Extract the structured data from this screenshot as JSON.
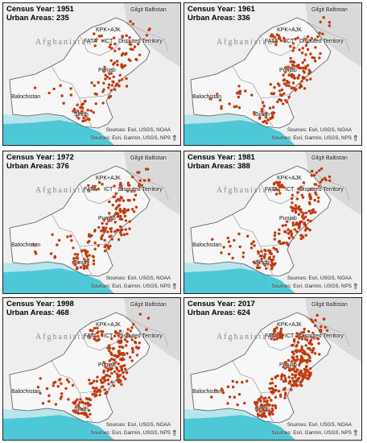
{
  "panels": [
    {
      "year_label": "Census Year: 1951",
      "count_label": "Urban Areas: 235",
      "density": 235
    },
    {
      "year_label": "Census Year: 1961",
      "count_label": "Urban Areas: 336",
      "density": 336
    },
    {
      "year_label": "Census Year: 1972",
      "count_label": "Urban Areas: 376",
      "density": 376
    },
    {
      "year_label": "Census Year: 1981",
      "count_label": "Urban Areas: 388",
      "density": 388
    },
    {
      "year_label": "Census Year: 1998",
      "count_label": "Urban Areas: 468",
      "density": 468
    },
    {
      "year_label": "Census Year: 2017",
      "count_label": "Urban Areas: 624",
      "density": 624
    }
  ],
  "map_labels": {
    "afghanistan": "Afghanistan",
    "gilgit": "Gilgit Baltistan",
    "kpk": "KPK+AJK",
    "fata": "FATA",
    "ict": "ICT",
    "disputed": "Disputed Territory",
    "punjab": "Punjab",
    "balochistan": "Balochistan",
    "sindh": "Sindh"
  },
  "sources": {
    "line1": "Sources: Esri, USGS, NOAA",
    "line2": "Sources: Esri, Garmin, USGS, NPS"
  },
  "colors": {
    "dot": "#c1390e",
    "sea": "#4ec8d6",
    "border": "#444444"
  }
}
